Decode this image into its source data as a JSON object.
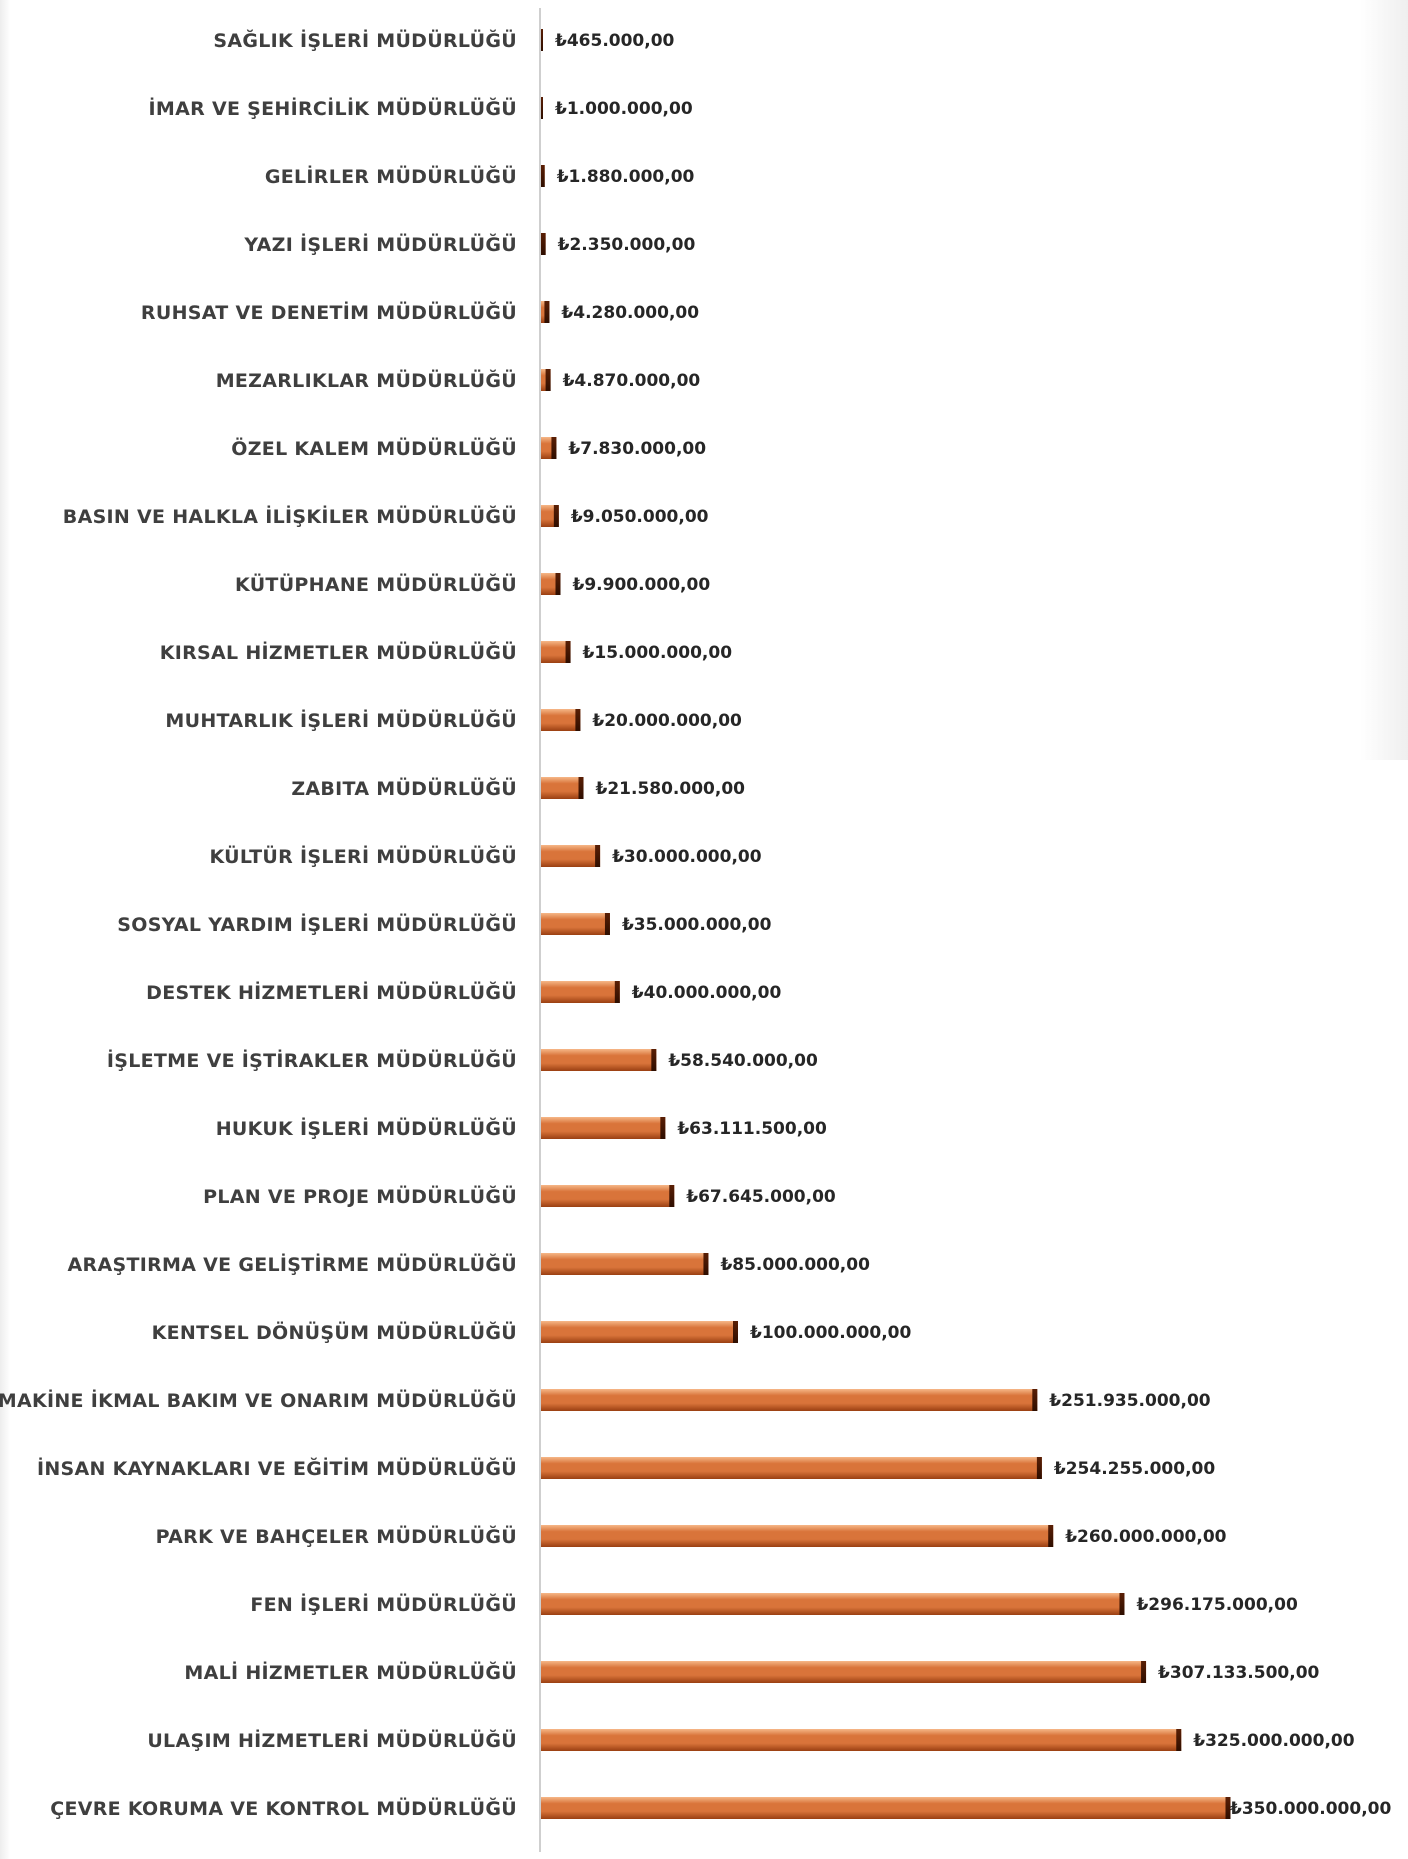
{
  "chart_data": {
    "type": "bar",
    "orientation": "horizontal",
    "title": "",
    "xlabel": "",
    "ylabel": "",
    "grid": false,
    "legend": "none",
    "bar_color": "#d9743a",
    "bar_color_light": "#f6b788",
    "bar_color_dark": "#9a3f12",
    "xlim": [
      0,
      350000000
    ],
    "categories": [
      "SAĞLIK İŞLERİ MÜDÜRLÜĞÜ",
      "İMAR VE ŞEHİRCİLİK MÜDÜRLÜĞÜ",
      "GELİRLER MÜDÜRLÜĞÜ",
      "YAZI İŞLERİ MÜDÜRLÜĞÜ",
      "RUHSAT VE DENETİM MÜDÜRLÜĞÜ",
      "MEZARLIKLAR MÜDÜRLÜĞÜ",
      "ÖZEL KALEM MÜDÜRLÜĞÜ",
      "BASIN VE HALKLA İLİŞKİLER MÜDÜRLÜĞÜ",
      "KÜTÜPHANE MÜDÜRLÜĞÜ",
      "KIRSAL HİZMETLER MÜDÜRLÜĞÜ",
      "MUHTARLIK İŞLERİ MÜDÜRLÜĞÜ",
      "ZABITA MÜDÜRLÜĞÜ",
      "KÜLTÜR İŞLERİ MÜDÜRLÜĞÜ",
      "SOSYAL YARDIM İŞLERİ MÜDÜRLÜĞÜ",
      "DESTEK HİZMETLERİ MÜDÜRLÜĞÜ",
      "İŞLETME VE İŞTİRAKLER MÜDÜRLÜĞÜ",
      "HUKUK İŞLERİ MÜDÜRLÜĞÜ",
      "PLAN VE PROJE MÜDÜRLÜĞÜ",
      "ARAŞTIRMA VE GELİŞTİRME MÜDÜRLÜĞÜ",
      "KENTSEL DÖNÜŞÜM MÜDÜRLÜĞÜ",
      "MAKİNE İKMAL BAKIM VE ONARIM MÜDÜRLÜĞÜ",
      "İNSAN KAYNAKLARI VE EĞİTİM MÜDÜRLÜĞÜ",
      "PARK VE BAHÇELER MÜDÜRLÜĞÜ",
      "FEN İŞLERİ MÜDÜRLÜĞÜ",
      "MALİ HİZMETLER MÜDÜRLÜĞÜ",
      "ULAŞIM HİZMETLERİ MÜDÜRLÜĞÜ",
      "ÇEVRE KORUMA VE KONTROL MÜDÜRLÜĞÜ"
    ],
    "values": [
      465000,
      1000000,
      1880000,
      2350000,
      4280000,
      4870000,
      7830000,
      9050000,
      9900000,
      15000000,
      20000000,
      21580000,
      30000000,
      35000000,
      40000000,
      58540000,
      63111500,
      67645000,
      85000000,
      100000000,
      251935000,
      254255000,
      260000000,
      296175000,
      307133500,
      325000000,
      350000000
    ],
    "data_labels": [
      "₺465.000,00",
      "₺1.000.000,00",
      "₺1.880.000,00",
      "₺2.350.000,00",
      "₺4.280.000,00",
      "₺4.870.000,00",
      "₺7.830.000,00",
      "₺9.050.000,00",
      "₺9.900.000,00",
      "₺15.000.000,00",
      "₺20.000.000,00",
      "₺21.580.000,00",
      "₺30.000.000,00",
      "₺35.000.000,00",
      "₺40.000.000,00",
      "₺58.540.000,00",
      "₺63.111.500,00",
      "₺67.645.000,00",
      "₺85.000.000,00",
      "₺100.000.000,00",
      "₺251.935.000,00",
      "₺254.255.000,00",
      "₺260.000.000,00",
      "₺296.175.000,00",
      "₺307.133.500,00",
      "₺325.000.000,00",
      "₺350.000.000,00"
    ]
  }
}
